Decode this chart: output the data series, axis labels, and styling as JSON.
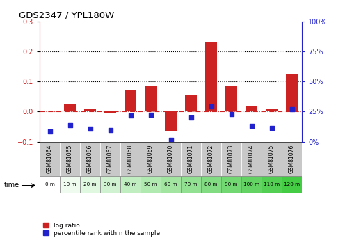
{
  "title": "GDS2347 / YPL180W",
  "samples": [
    "GSM81064",
    "GSM81065",
    "GSM81066",
    "GSM81067",
    "GSM81068",
    "GSM81069",
    "GSM81070",
    "GSM81071",
    "GSM81072",
    "GSM81073",
    "GSM81074",
    "GSM81075",
    "GSM81076"
  ],
  "time_labels": [
    "0 m",
    "10 m",
    "20 m",
    "30 m",
    "40 m",
    "50 m",
    "60 m",
    "70 m",
    "80 m",
    "90 m",
    "100 m",
    "110 m",
    "120 m"
  ],
  "log_ratio": [
    0.0,
    0.025,
    0.01,
    -0.005,
    0.072,
    0.085,
    -0.065,
    0.055,
    0.23,
    0.085,
    0.02,
    0.01,
    0.125
  ],
  "percentile_rank": [
    0.085,
    0.135,
    0.11,
    0.095,
    0.215,
    0.225,
    0.015,
    0.2,
    0.295,
    0.23,
    0.13,
    0.115,
    0.27
  ],
  "bar_color": "#cc2222",
  "scatter_color": "#2222cc",
  "ylim_left": [
    -0.1,
    0.3
  ],
  "ylim_right": [
    0.0,
    1.0
  ],
  "yticks_left": [
    -0.1,
    0.0,
    0.1,
    0.2,
    0.3
  ],
  "yticks_right": [
    0.0,
    0.25,
    0.5,
    0.75,
    1.0
  ],
  "ytick_labels_right": [
    "0%",
    "25%",
    "50%",
    "75%",
    "100%"
  ],
  "hline_y": [
    0.1,
    0.2
  ],
  "zero_line_y": 0.0,
  "bg_color": "#ffffff",
  "plot_bg": "#ffffff",
  "sample_cell_color": "#c8c8c8",
  "legend_log_ratio": "log ratio",
  "legend_percentile": "percentile rank within the sample",
  "xlabel_time": "time"
}
